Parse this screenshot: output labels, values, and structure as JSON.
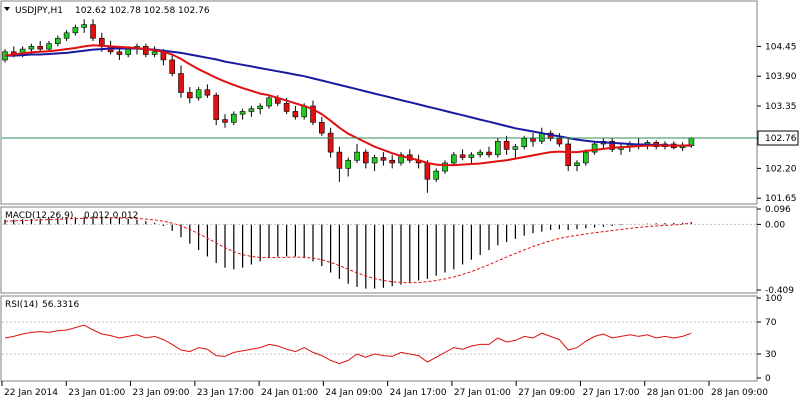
{
  "header": {
    "arrow_icon": "triangle-down-icon",
    "title": "USDJPY,H1",
    "ohlc": "102.62 102.78 102.58 102.76"
  },
  "colors": {
    "bull_candle": "#22c922",
    "bear_candle": "#e01010",
    "fast_ma": "#e01010",
    "slow_ma": "#1a1aa0",
    "macd_hist": "#000000",
    "macd_signal": "#e01010",
    "rsi_line": "#e01010",
    "current_price_line": "#2e8b57",
    "grid": "#c0c0c0"
  },
  "chart_data": [
    {
      "type": "candlestick",
      "title": "USDJPY,H1",
      "yticks": [
        "104.45",
        "103.90",
        "103.35",
        "102.75",
        "102.20",
        "101.65"
      ],
      "current_price": "102.76",
      "ylim": [
        101.58,
        105.25
      ],
      "xticks": [
        "22 Jan 2014",
        "23 Jan 01:00",
        "23 Jan 09:00",
        "23 Jan 17:00",
        "24 Jan 01:00",
        "24 Jan 09:00",
        "24 Jan 17:00",
        "27 Jan 01:00",
        "27 Jan 09:00",
        "27 Jan 17:00",
        "28 Jan 01:00",
        "28 Jan 09:00"
      ],
      "candles": [
        [
          104.2,
          104.4,
          104.15,
          104.35
        ],
        [
          104.35,
          104.45,
          104.25,
          104.3
        ],
        [
          104.3,
          104.45,
          104.25,
          104.4
        ],
        [
          104.4,
          104.5,
          104.3,
          104.45
        ],
        [
          104.45,
          104.55,
          104.35,
          104.4
        ],
        [
          104.4,
          104.55,
          104.35,
          104.5
        ],
        [
          104.5,
          104.65,
          104.45,
          104.6
        ],
        [
          104.6,
          104.75,
          104.55,
          104.7
        ],
        [
          104.7,
          104.85,
          104.65,
          104.8
        ],
        [
          104.8,
          104.95,
          104.7,
          104.85
        ],
        [
          104.85,
          104.95,
          104.55,
          104.6
        ],
        [
          104.6,
          104.7,
          104.35,
          104.45
        ],
        [
          104.45,
          104.55,
          104.3,
          104.35
        ],
        [
          104.35,
          104.45,
          104.2,
          104.3
        ],
        [
          104.3,
          104.45,
          104.25,
          104.4
        ],
        [
          104.4,
          104.5,
          104.3,
          104.45
        ],
        [
          104.45,
          104.5,
          104.25,
          104.3
        ],
        [
          104.3,
          104.45,
          104.25,
          104.35
        ],
        [
          104.35,
          104.4,
          104.1,
          104.2
        ],
        [
          104.2,
          104.3,
          103.9,
          103.95
        ],
        [
          103.95,
          104.1,
          103.5,
          103.6
        ],
        [
          103.6,
          103.7,
          103.4,
          103.5
        ],
        [
          103.5,
          103.7,
          103.45,
          103.65
        ],
        [
          103.65,
          103.75,
          103.5,
          103.55
        ],
        [
          103.55,
          103.6,
          103.0,
          103.1
        ],
        [
          103.1,
          103.2,
          102.95,
          103.05
        ],
        [
          103.05,
          103.25,
          103.0,
          103.2
        ],
        [
          103.2,
          103.3,
          103.1,
          103.25
        ],
        [
          103.25,
          103.35,
          103.15,
          103.3
        ],
        [
          103.3,
          103.4,
          103.2,
          103.35
        ],
        [
          103.35,
          103.55,
          103.3,
          103.5
        ],
        [
          103.5,
          103.55,
          103.35,
          103.4
        ],
        [
          103.4,
          103.5,
          103.2,
          103.25
        ],
        [
          103.25,
          103.35,
          103.1,
          103.15
        ],
        [
          103.15,
          103.4,
          103.1,
          103.35
        ],
        [
          103.35,
          103.45,
          103.0,
          103.05
        ],
        [
          103.05,
          103.15,
          102.8,
          102.85
        ],
        [
          102.85,
          102.95,
          102.4,
          102.5
        ],
        [
          102.5,
          102.6,
          101.95,
          102.2
        ],
        [
          102.2,
          102.4,
          102.05,
          102.35
        ],
        [
          102.35,
          102.65,
          102.3,
          102.5
        ],
        [
          102.5,
          102.55,
          102.2,
          102.3
        ],
        [
          102.3,
          102.45,
          102.15,
          102.4
        ],
        [
          102.4,
          102.5,
          102.25,
          102.35
        ],
        [
          102.35,
          102.45,
          102.2,
          102.3
        ],
        [
          102.3,
          102.5,
          102.25,
          102.45
        ],
        [
          102.45,
          102.55,
          102.3,
          102.35
        ],
        [
          102.35,
          102.45,
          102.2,
          102.3
        ],
        [
          102.3,
          102.35,
          101.75,
          102.0
        ],
        [
          102.0,
          102.2,
          101.95,
          102.15
        ],
        [
          102.15,
          102.35,
          102.1,
          102.3
        ],
        [
          102.3,
          102.5,
          102.25,
          102.45
        ],
        [
          102.45,
          102.55,
          102.35,
          102.4
        ],
        [
          102.4,
          102.5,
          102.3,
          102.45
        ],
        [
          102.45,
          102.55,
          102.4,
          102.5
        ],
        [
          102.5,
          102.6,
          102.4,
          102.45
        ],
        [
          102.45,
          102.75,
          102.4,
          102.7
        ],
        [
          102.7,
          102.8,
          102.45,
          102.55
        ],
        [
          102.55,
          102.65,
          102.4,
          102.6
        ],
        [
          102.6,
          102.8,
          102.55,
          102.75
        ],
        [
          102.75,
          102.85,
          102.6,
          102.7
        ],
        [
          102.7,
          102.95,
          102.65,
          102.85
        ],
        [
          102.85,
          102.9,
          102.7,
          102.75
        ],
        [
          102.75,
          102.85,
          102.6,
          102.65
        ],
        [
          102.65,
          102.75,
          102.15,
          102.25
        ],
        [
          102.25,
          102.35,
          102.15,
          102.3
        ],
        [
          102.3,
          102.55,
          102.25,
          102.5
        ],
        [
          102.5,
          102.7,
          102.45,
          102.65
        ],
        [
          102.65,
          102.75,
          102.55,
          102.7
        ],
        [
          102.7,
          102.75,
          102.5,
          102.55
        ],
        [
          102.55,
          102.65,
          102.45,
          102.6
        ],
        [
          102.6,
          102.7,
          102.5,
          102.65
        ],
        [
          102.65,
          102.75,
          102.55,
          102.62
        ],
        [
          102.62,
          102.72,
          102.55,
          102.68
        ],
        [
          102.68,
          102.72,
          102.55,
          102.6
        ],
        [
          102.6,
          102.7,
          102.55,
          102.65
        ],
        [
          102.65,
          102.7,
          102.55,
          102.58
        ],
        [
          102.58,
          102.68,
          102.52,
          102.62
        ],
        [
          102.62,
          102.78,
          102.58,
          102.76
        ]
      ],
      "fast_ma": [
        104.28,
        104.3,
        104.32,
        104.34,
        104.35,
        104.36,
        104.38,
        104.4,
        104.42,
        104.45,
        104.47,
        104.46,
        104.45,
        104.44,
        104.43,
        104.42,
        104.4,
        104.38,
        104.35,
        104.3,
        104.22,
        104.12,
        104.03,
        103.95,
        103.87,
        103.8,
        103.74,
        103.68,
        103.63,
        103.58,
        103.55,
        103.5,
        103.45,
        103.4,
        103.35,
        103.29,
        103.2,
        103.08,
        102.95,
        102.84,
        102.76,
        102.68,
        102.6,
        102.54,
        102.48,
        102.43,
        102.39,
        102.35,
        102.3,
        102.27,
        102.26,
        102.26,
        102.27,
        102.28,
        102.29,
        102.31,
        102.33,
        102.35,
        102.38,
        102.41,
        102.44,
        102.47,
        102.5,
        102.51,
        102.5,
        102.5,
        102.52,
        102.54,
        102.56,
        102.58,
        102.59,
        102.6,
        102.61,
        102.62,
        102.62,
        102.62,
        102.62,
        102.62,
        102.63
      ],
      "slow_ma": [
        104.28,
        104.28,
        104.29,
        104.3,
        104.3,
        104.31,
        104.32,
        104.33,
        104.35,
        104.37,
        104.39,
        104.4,
        104.41,
        104.41,
        104.41,
        104.41,
        104.4,
        104.39,
        104.37,
        104.35,
        104.33,
        104.3,
        104.27,
        104.24,
        104.21,
        104.17,
        104.14,
        104.11,
        104.08,
        104.05,
        104.02,
        103.99,
        103.96,
        103.93,
        103.9,
        103.86,
        103.82,
        103.78,
        103.74,
        103.7,
        103.66,
        103.62,
        103.58,
        103.54,
        103.5,
        103.46,
        103.42,
        103.38,
        103.34,
        103.3,
        103.26,
        103.22,
        103.18,
        103.14,
        103.1,
        103.06,
        103.02,
        102.98,
        102.94,
        102.91,
        102.88,
        102.85,
        102.82,
        102.79,
        102.76,
        102.73,
        102.71,
        102.69,
        102.68,
        102.67,
        102.66,
        102.65,
        102.64,
        102.64,
        102.63,
        102.63,
        102.62,
        102.62,
        102.62
      ]
    },
    {
      "type": "bar",
      "title": "MACD(12,26,9)",
      "values_label": "0.012 0.012",
      "yticks": [
        "0.096",
        "0.00",
        "-0.409"
      ],
      "ylim": [
        -0.409,
        0.096
      ],
      "histogram": [
        0.03,
        0.03,
        0.032,
        0.034,
        0.036,
        0.038,
        0.04,
        0.042,
        0.045,
        0.048,
        0.05,
        0.048,
        0.045,
        0.04,
        0.035,
        0.03,
        0.02,
        0.01,
        -0.01,
        -0.04,
        -0.08,
        -0.12,
        -0.16,
        -0.2,
        -0.24,
        -0.27,
        -0.28,
        -0.27,
        -0.25,
        -0.23,
        -0.21,
        -0.2,
        -0.2,
        -0.2,
        -0.21,
        -0.23,
        -0.26,
        -0.3,
        -0.34,
        -0.37,
        -0.39,
        -0.4,
        -0.4,
        -0.395,
        -0.385,
        -0.375,
        -0.365,
        -0.35,
        -0.34,
        -0.32,
        -0.3,
        -0.28,
        -0.25,
        -0.22,
        -0.19,
        -0.16,
        -0.13,
        -0.11,
        -0.09,
        -0.07,
        -0.055,
        -0.045,
        -0.035,
        -0.03,
        -0.035,
        -0.03,
        -0.025,
        -0.02,
        -0.015,
        -0.01,
        -0.005,
        0.0,
        0.003,
        0.005,
        0.007,
        0.008,
        0.009,
        0.01,
        0.012
      ],
      "signal": [
        0.02,
        0.022,
        0.024,
        0.026,
        0.028,
        0.03,
        0.032,
        0.034,
        0.036,
        0.038,
        0.04,
        0.041,
        0.041,
        0.04,
        0.039,
        0.037,
        0.033,
        0.028,
        0.02,
        0.008,
        -0.01,
        -0.032,
        -0.058,
        -0.086,
        -0.116,
        -0.146,
        -0.17,
        -0.188,
        -0.2,
        -0.206,
        -0.207,
        -0.206,
        -0.205,
        -0.204,
        -0.205,
        -0.21,
        -0.22,
        -0.236,
        -0.257,
        -0.28,
        -0.302,
        -0.322,
        -0.338,
        -0.35,
        -0.358,
        -0.362,
        -0.364,
        -0.362,
        -0.357,
        -0.35,
        -0.34,
        -0.328,
        -0.312,
        -0.294,
        -0.273,
        -0.251,
        -0.227,
        -0.204,
        -0.181,
        -0.159,
        -0.138,
        -0.119,
        -0.102,
        -0.087,
        -0.077,
        -0.068,
        -0.06,
        -0.052,
        -0.045,
        -0.038,
        -0.031,
        -0.025,
        -0.019,
        -0.014,
        -0.01,
        -0.006,
        -0.003,
        0.0,
        0.012
      ]
    },
    {
      "type": "line",
      "title": "RSI(14)",
      "value_label": "56.3316",
      "yticks": [
        "100",
        "70",
        "30",
        "0"
      ],
      "levels": [
        70,
        30
      ],
      "ylim": [
        0,
        100
      ],
      "values": [
        50,
        52,
        55,
        57,
        58,
        57,
        59,
        60,
        63,
        66,
        60,
        55,
        53,
        50,
        52,
        54,
        50,
        52,
        48,
        42,
        35,
        33,
        38,
        36,
        28,
        27,
        32,
        34,
        36,
        38,
        42,
        40,
        36,
        33,
        38,
        32,
        28,
        22,
        18,
        22,
        30,
        26,
        30,
        28,
        27,
        32,
        30,
        28,
        20,
        26,
        32,
        38,
        36,
        40,
        42,
        42,
        50,
        45,
        47,
        52,
        50,
        56,
        52,
        48,
        35,
        38,
        46,
        52,
        55,
        50,
        52,
        54,
        52,
        54,
        50,
        52,
        50,
        52,
        56
      ]
    }
  ]
}
